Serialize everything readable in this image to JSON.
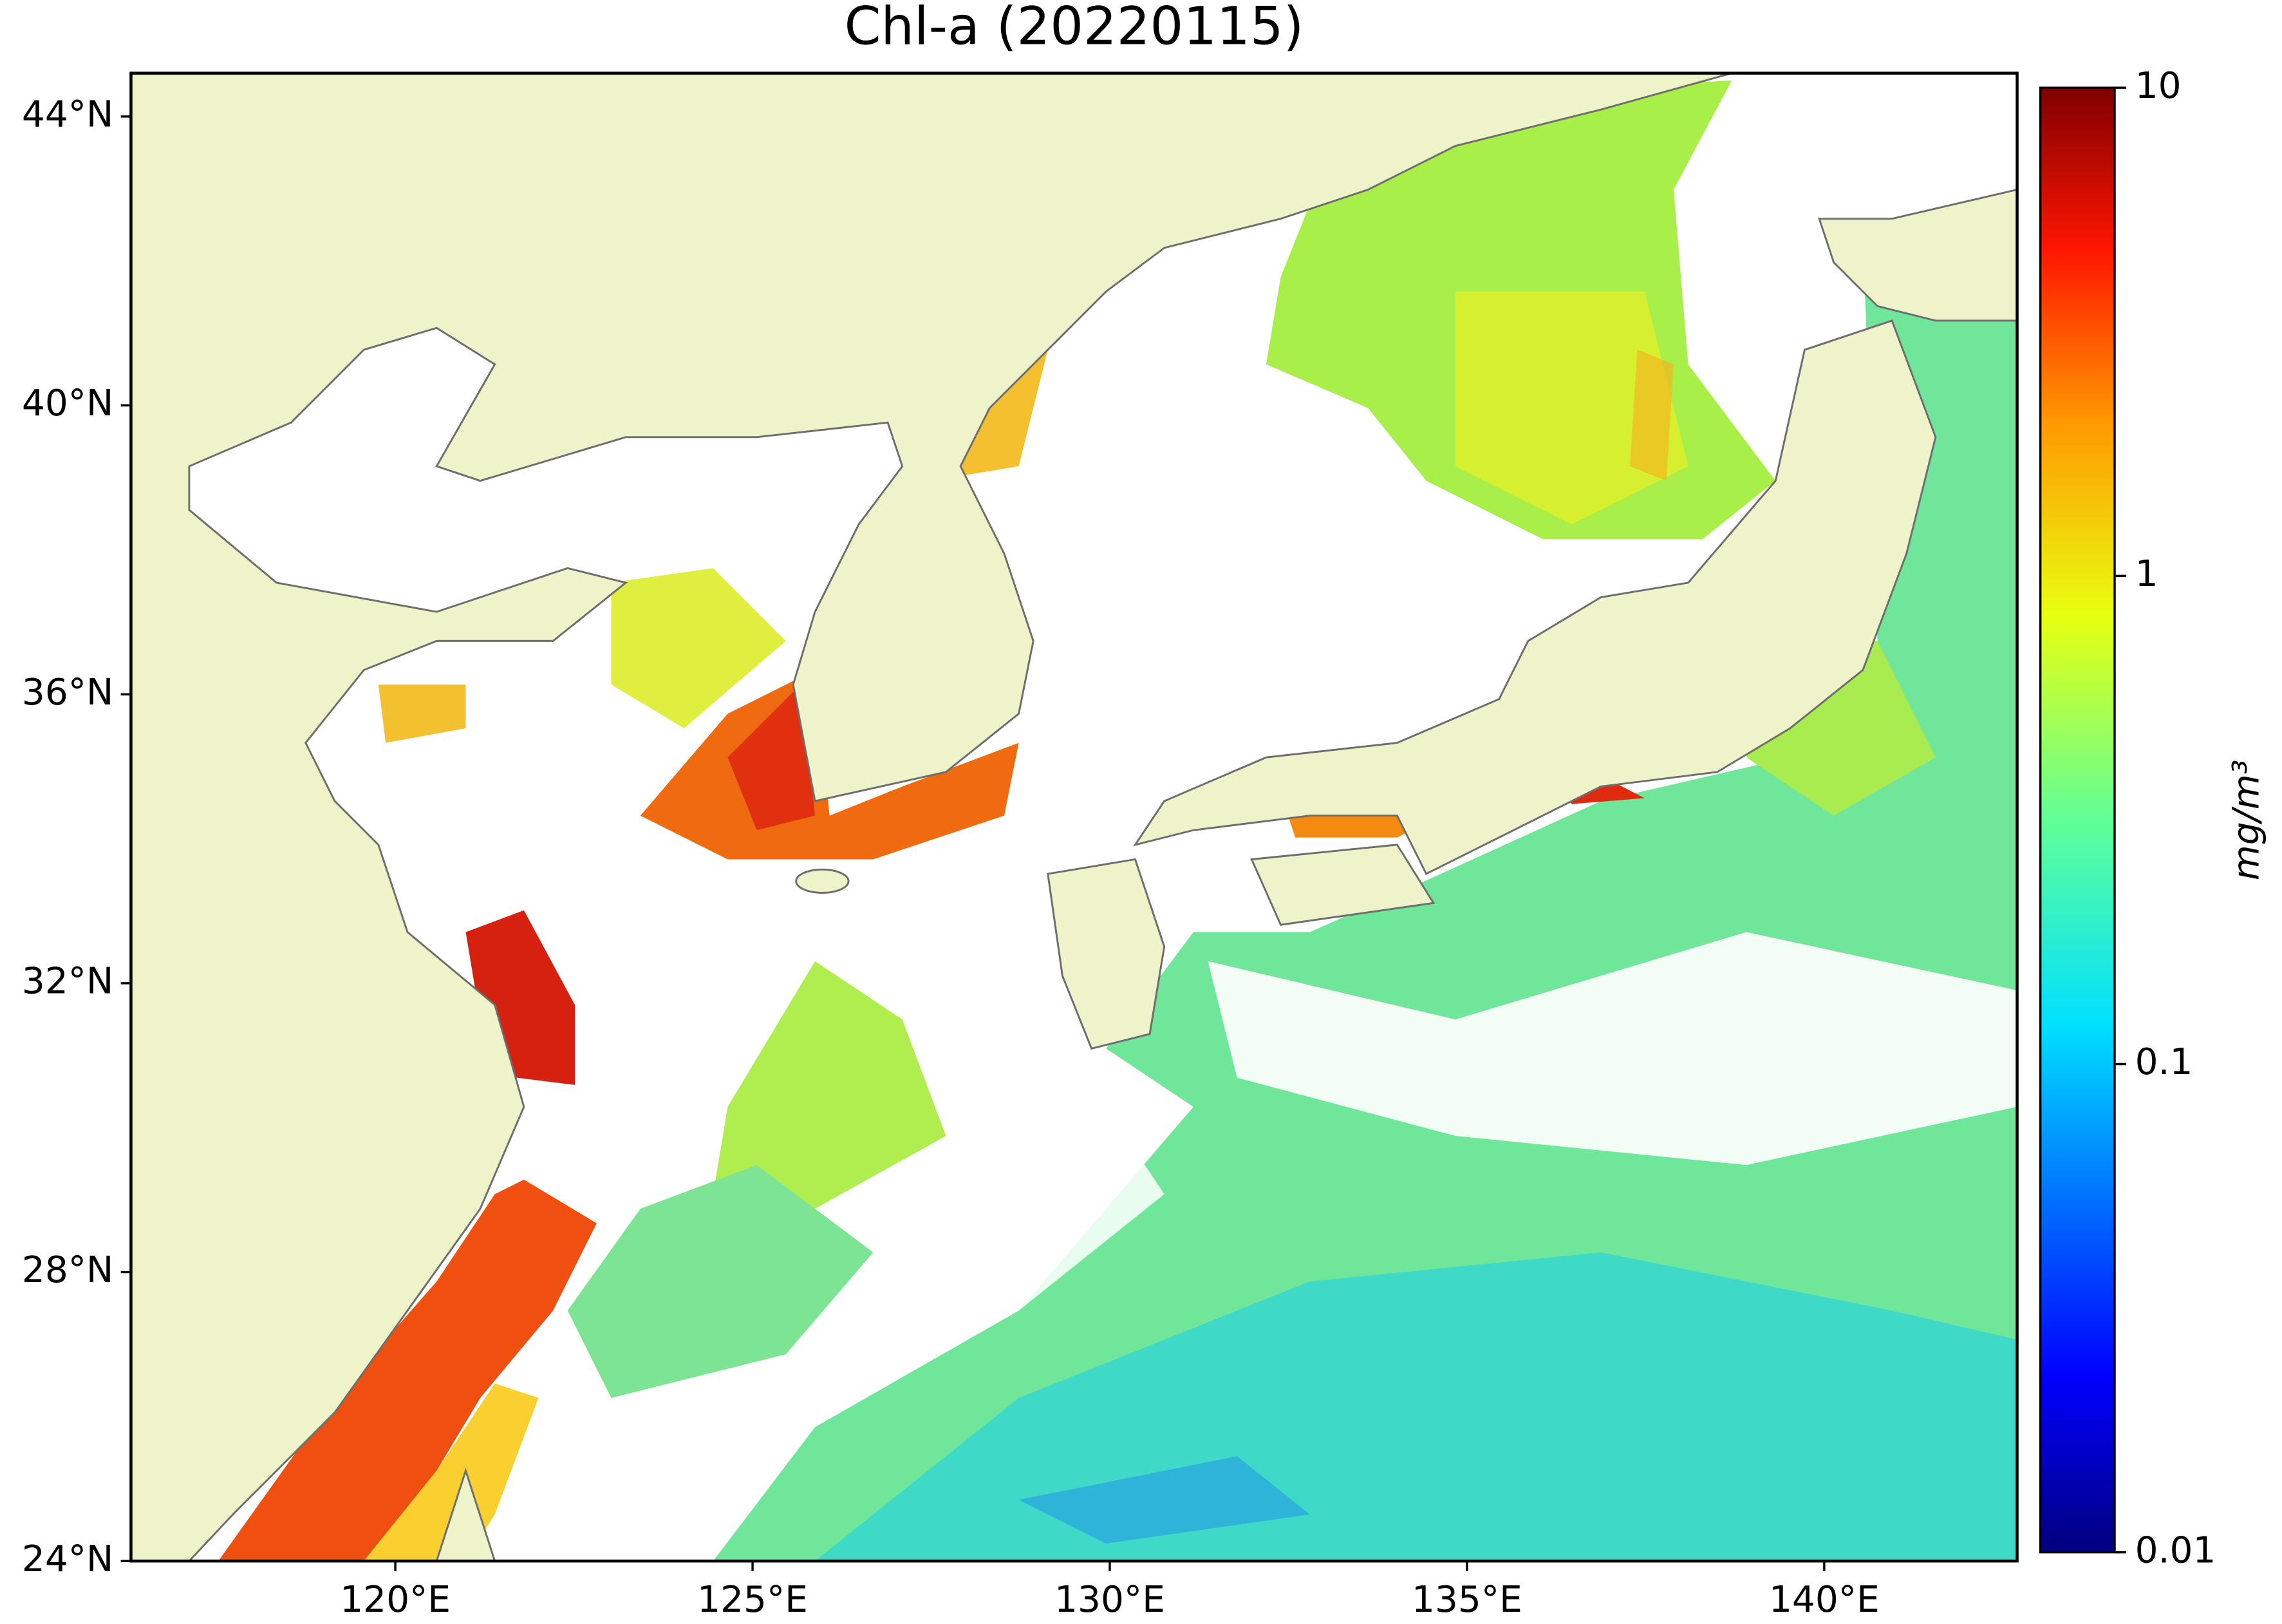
{
  "title": "Chl-a (20220115)",
  "map": {
    "xlim": [
      116.3,
      142.7
    ],
    "ylim": [
      24,
      44.6
    ],
    "xticks": [
      {
        "value": 120,
        "label": "120°E"
      },
      {
        "value": 125,
        "label": "125°E"
      },
      {
        "value": 130,
        "label": "130°E"
      },
      {
        "value": 135,
        "label": "135°E"
      },
      {
        "value": 140,
        "label": "140°E"
      }
    ],
    "yticks": [
      {
        "value": 24,
        "label": "24°N"
      },
      {
        "value": 28,
        "label": "28°N"
      },
      {
        "value": 32,
        "label": "32°N"
      },
      {
        "value": 36,
        "label": "36°N"
      },
      {
        "value": 40,
        "label": "40°N"
      },
      {
        "value": 44,
        "label": "44°N"
      }
    ]
  },
  "colorbar": {
    "label": "mg/m³",
    "scale": "log",
    "lim": [
      0.01,
      10
    ],
    "ticks": [
      0.01,
      0.1,
      1,
      10
    ]
  }
}
